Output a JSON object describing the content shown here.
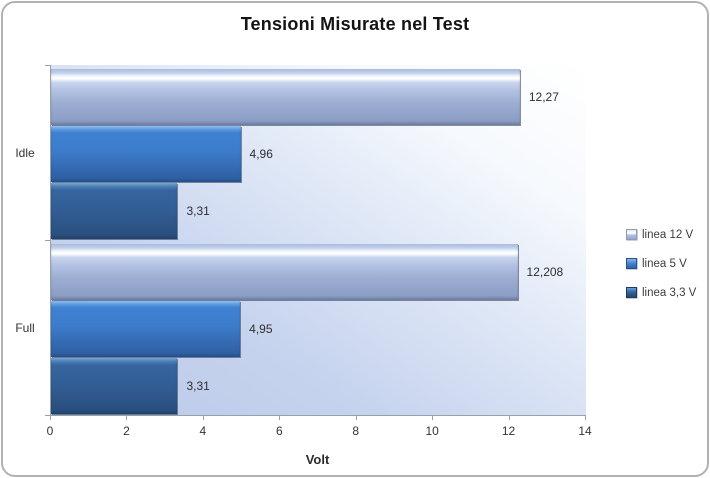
{
  "chart_data": {
    "type": "bar",
    "orientation": "horizontal",
    "title": "Tensioni Misurate nel Test",
    "xlabel": "Volt",
    "categories": [
      "Idle",
      "Full"
    ],
    "series": [
      {
        "name": "linea 12 V",
        "values": [
          12.27,
          12.208
        ],
        "data_labels": [
          "12,27",
          "12,208"
        ],
        "color": "#a3b5d9"
      },
      {
        "name": "linea 5 V",
        "values": [
          4.96,
          4.95
        ],
        "data_labels": [
          "4,96",
          "4,95"
        ],
        "color": "#3b7ac6"
      },
      {
        "name": "linea 3,3 V",
        "values": [
          3.31,
          3.31
        ],
        "data_labels": [
          "3,31",
          "3,31"
        ],
        "color": "#2c5a8f"
      }
    ],
    "xlim": [
      0,
      14
    ],
    "x_ticks": [
      "0",
      "2",
      "4",
      "6",
      "8",
      "10",
      "12",
      "14"
    ],
    "grid": false,
    "legend_position": "right"
  }
}
